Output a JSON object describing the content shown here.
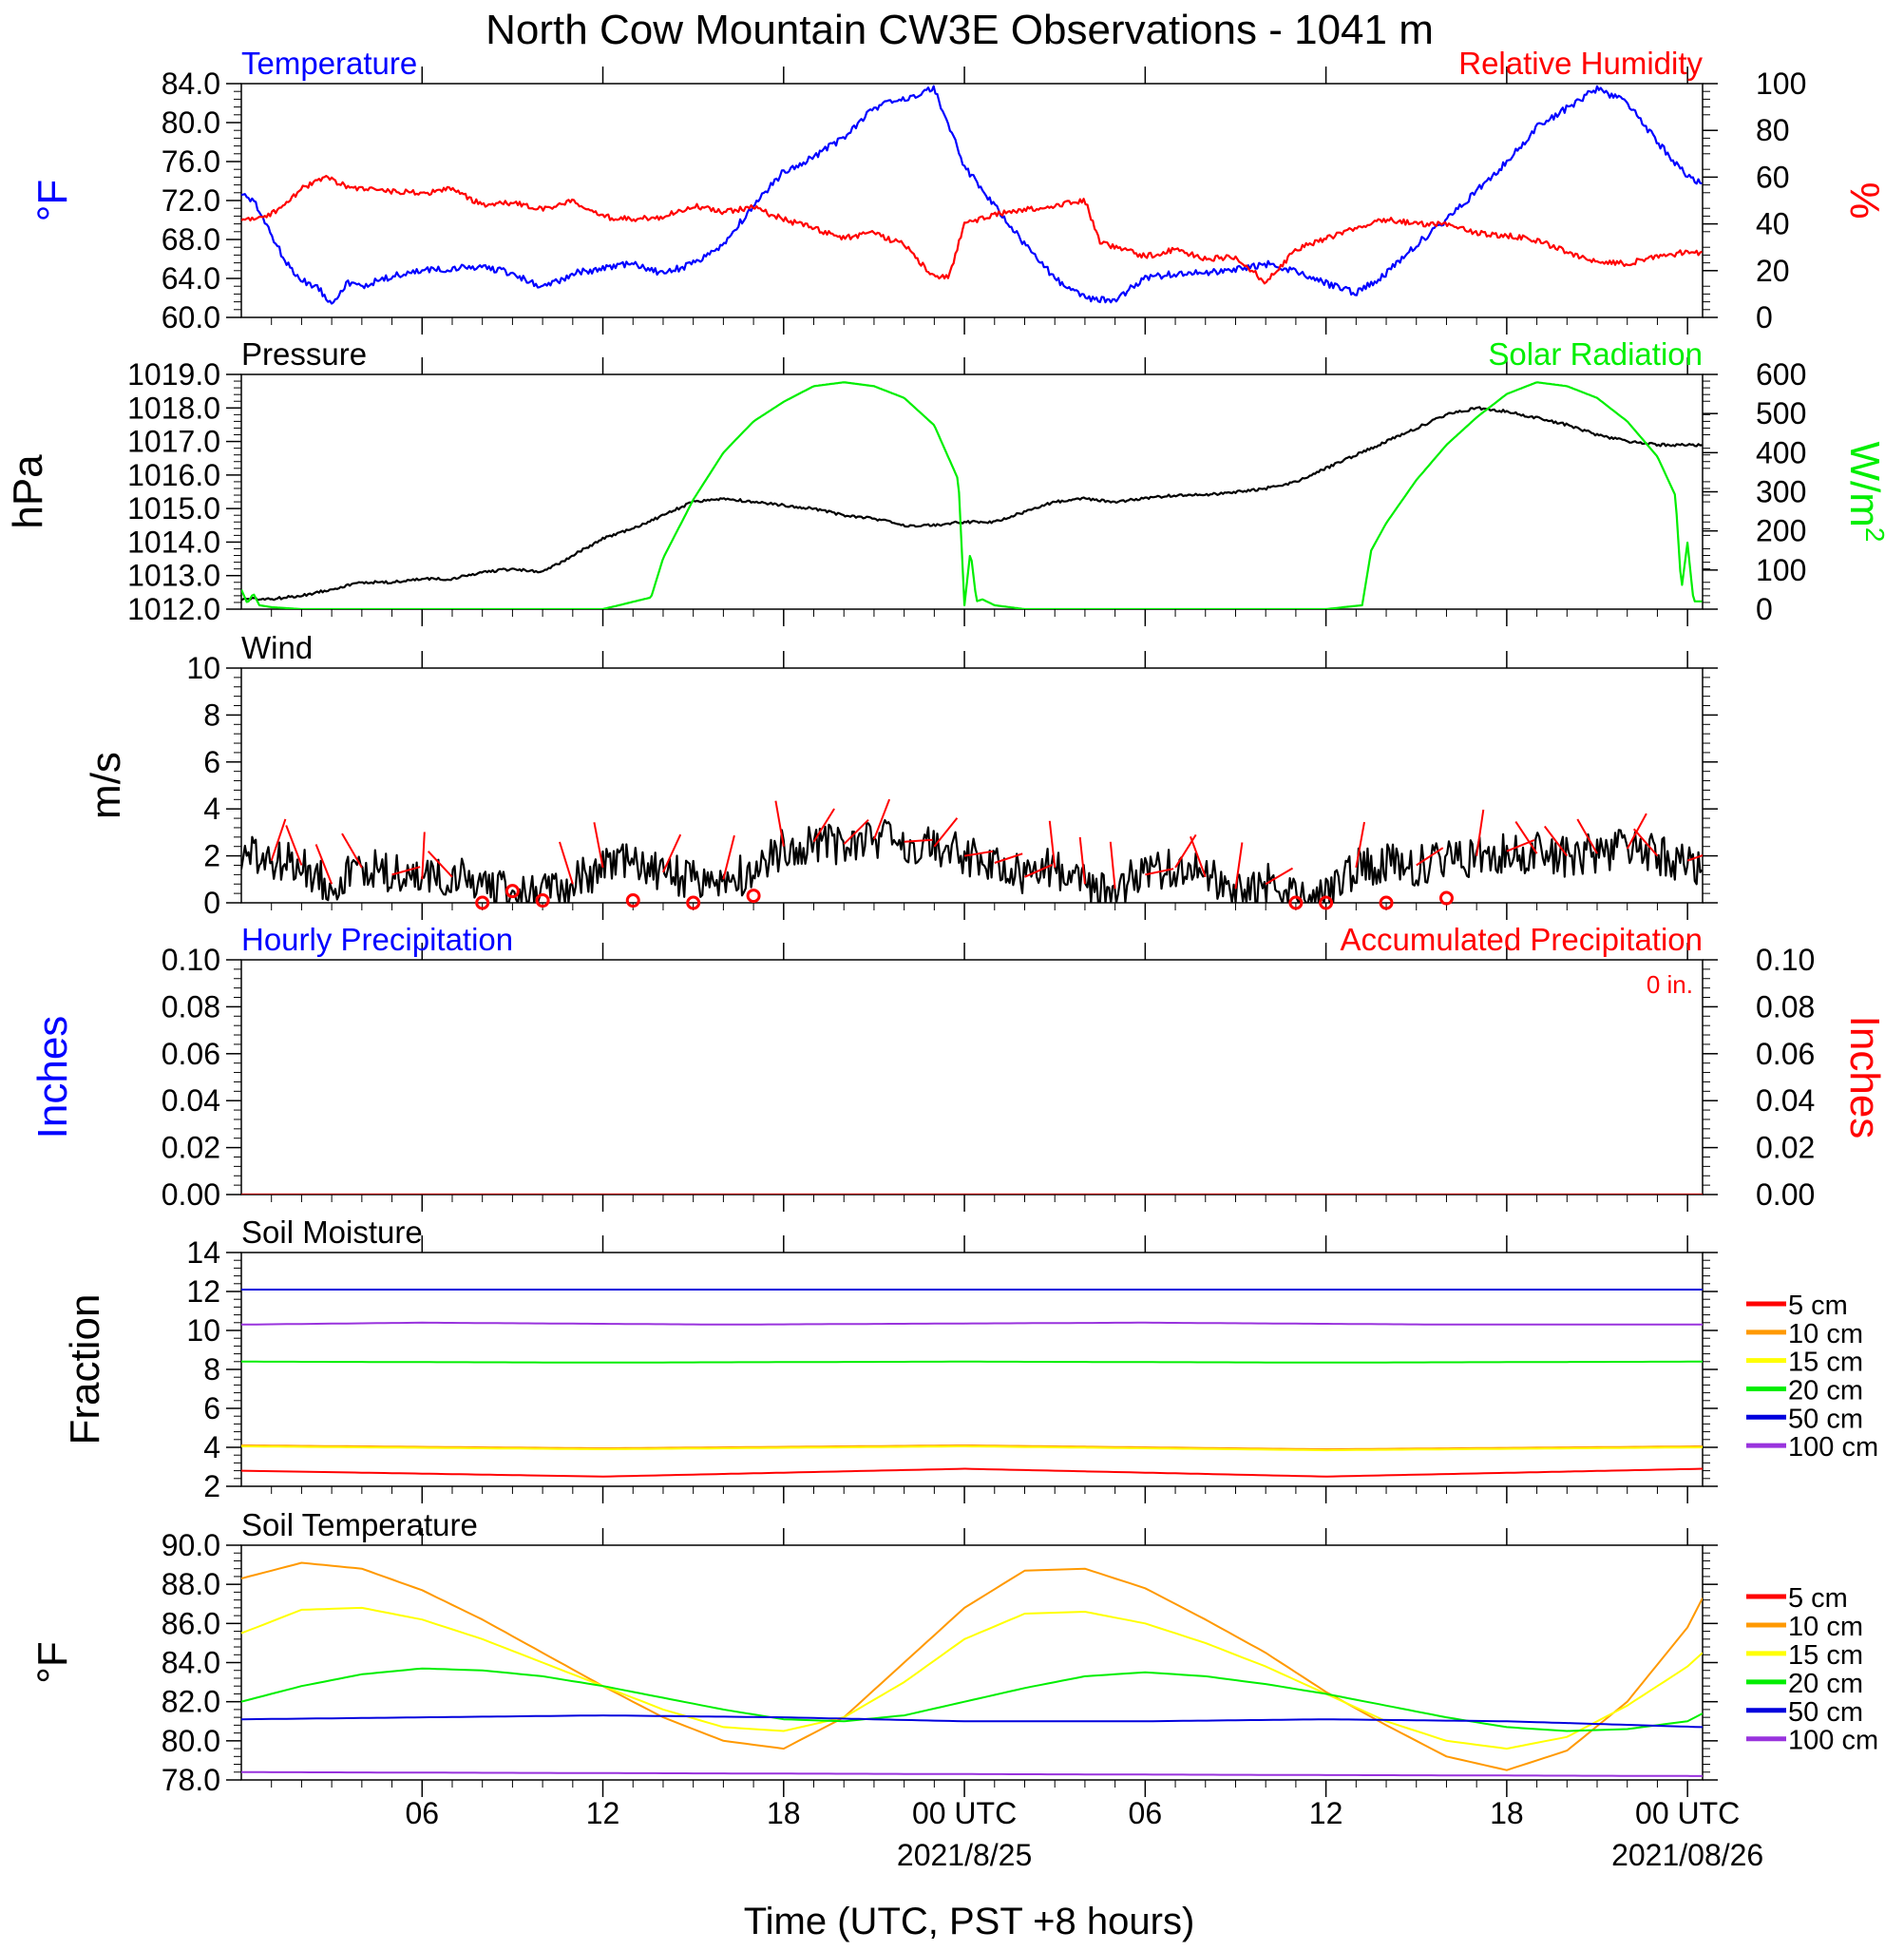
{
  "title": "North Cow Mountain CW3E Observations - 1041 m",
  "x_axis": {
    "title": "Time (UTC, PST +8 hours)",
    "tick_labels": [
      "06",
      "12",
      "18",
      "00 UTC",
      "06",
      "12",
      "18",
      "00 UTC"
    ],
    "date_labels": [
      "2021/8/25",
      "2021/08/26"
    ],
    "range_hours": [
      0,
      48.5
    ]
  },
  "colors": {
    "temperature": "#0000ff",
    "humidity": "#ff0000",
    "pressure": "#000000",
    "solar": "#00ee00",
    "wind": "#000000",
    "barbs": "#ff0000",
    "depth_5": "#ff0000",
    "depth_10": "#ff9900",
    "depth_15": "#ffff00",
    "depth_20": "#00ee00",
    "depth_50": "#0000dd",
    "depth_100": "#9933dd"
  },
  "chart_data": [
    {
      "type": "line",
      "title_left": "Temperature",
      "title_right": "Relative Humidity",
      "ylabel_left": "°F",
      "ylabel_right": "%",
      "ylim_left": [
        60,
        84
      ],
      "ylim_right": [
        0,
        100
      ],
      "yticks_left": [
        "60.0",
        "64.0",
        "68.0",
        "72.0",
        "76.0",
        "80.0",
        "84.0"
      ],
      "yticks_right": [
        "0",
        "20",
        "40",
        "60",
        "80",
        "100"
      ],
      "series": [
        {
          "name": "Temperature",
          "axis": "left",
          "color": "#0000ff",
          "x": [
            0,
            0.5,
            1,
            1.5,
            2,
            2.5,
            3,
            3.5,
            4,
            5,
            6,
            7,
            8,
            9,
            10,
            11,
            12,
            13,
            14,
            15,
            16,
            17,
            18,
            19,
            20,
            21,
            22,
            23,
            24,
            25,
            26,
            27,
            28,
            29,
            30,
            31,
            32,
            33,
            34,
            35,
            36,
            37,
            38,
            39,
            40,
            41,
            42,
            43,
            44,
            45,
            46,
            47,
            48,
            48.5
          ],
          "values": [
            72.8,
            71.5,
            68.5,
            65.5,
            63.8,
            63.2,
            61.5,
            63.5,
            63.2,
            64.2,
            64.8,
            65.0,
            65.2,
            64.5,
            63.0,
            64.5,
            65.0,
            65.5,
            64.5,
            65.5,
            67.5,
            71.5,
            75.0,
            76.5,
            78.5,
            81.5,
            82.5,
            83.5,
            75.5,
            71.5,
            67.5,
            64.0,
            62.0,
            61.8,
            64.0,
            64.5,
            64.5,
            65.0,
            65.5,
            64.8,
            63.5,
            62.5,
            64.5,
            67.5,
            70.0,
            73.0,
            76.0,
            79.5,
            81.5,
            83.5,
            82.0,
            78.0,
            74.5,
            73.8
          ]
        },
        {
          "name": "Relative Humidity",
          "axis": "right",
          "color": "#ff0000",
          "x": [
            0,
            1,
            2,
            2.8,
            3.5,
            4,
            5,
            6,
            7,
            8,
            9,
            10,
            11,
            12,
            13,
            14,
            15,
            16,
            17,
            18,
            19,
            20,
            21,
            22,
            23,
            23.5,
            24,
            25,
            26,
            27,
            28,
            28.5,
            29,
            30,
            31,
            32,
            33,
            34,
            35,
            36,
            37,
            38,
            39,
            40,
            41,
            42,
            43,
            44,
            45,
            46,
            47,
            48,
            48.5
          ],
          "values": [
            42,
            44,
            55,
            60,
            56,
            55,
            54,
            53,
            55,
            48,
            49,
            46,
            50,
            43,
            42,
            43,
            48,
            45,
            47,
            42,
            38,
            34,
            36,
            31,
            17,
            18,
            40,
            44,
            46,
            48,
            50,
            32,
            30,
            26,
            29,
            25,
            26,
            15,
            29,
            34,
            38,
            42,
            40,
            40,
            36,
            35,
            33,
            28,
            24,
            23,
            26,
            28,
            27
          ]
        }
      ]
    },
    {
      "type": "line",
      "title_left": "Pressure",
      "title_right": "Solar Radiation",
      "ylabel_left": "hPa",
      "ylabel_right": "W/m",
      "ylabel_right_sup": "2",
      "ylim_left": [
        1012,
        1019
      ],
      "ylim_right": [
        0,
        600
      ],
      "yticks_left": [
        "1012.0",
        "1013.0",
        "1014.0",
        "1015.0",
        "1016.0",
        "1017.0",
        "1018.0",
        "1019.0"
      ],
      "yticks_right": [
        "0",
        "100",
        "200",
        "300",
        "400",
        "500",
        "600"
      ],
      "series": [
        {
          "name": "Pressure",
          "axis": "left",
          "color": "#000000",
          "x": [
            0,
            1,
            2,
            3,
            4,
            5,
            6,
            7,
            8,
            9,
            10,
            11,
            12,
            13,
            14,
            15,
            16,
            17,
            18,
            19,
            20,
            21,
            22,
            23,
            24,
            25,
            26,
            27,
            28,
            29,
            30,
            31,
            32,
            33,
            34,
            35,
            36,
            37,
            38,
            39,
            40,
            41,
            42,
            43,
            44,
            45,
            46,
            47,
            48,
            48.5
          ],
          "values": [
            1012.3,
            1012.3,
            1012.4,
            1012.6,
            1012.8,
            1012.8,
            1012.9,
            1012.9,
            1013.1,
            1013.2,
            1013.1,
            1013.6,
            1014.1,
            1014.4,
            1014.8,
            1015.2,
            1015.3,
            1015.2,
            1015.1,
            1015.0,
            1014.8,
            1014.7,
            1014.5,
            1014.5,
            1014.6,
            1014.6,
            1014.9,
            1015.2,
            1015.3,
            1015.2,
            1015.3,
            1015.4,
            1015.4,
            1015.5,
            1015.6,
            1015.8,
            1016.2,
            1016.6,
            1017.0,
            1017.4,
            1017.8,
            1018.0,
            1017.9,
            1017.7,
            1017.5,
            1017.2,
            1017.0,
            1016.9,
            1016.9,
            1016.9
          ]
        },
        {
          "name": "Solar Radiation",
          "axis": "right",
          "color": "#00ee00",
          "x": [
            0,
            0.2,
            0.4,
            0.6,
            1,
            2,
            12,
            13.6,
            14,
            15,
            16,
            17,
            18,
            19,
            20,
            21,
            22,
            23,
            23.8,
            24,
            24.2,
            24.4,
            24.6,
            25,
            26,
            36,
            37.2,
            37.5,
            38,
            39,
            40,
            41,
            42,
            43,
            44,
            45,
            46,
            47,
            47.6,
            47.8,
            48,
            48.2,
            48.5
          ],
          "values": [
            50,
            15,
            40,
            10,
            5,
            0,
            0,
            30,
            130,
            280,
            400,
            480,
            530,
            570,
            580,
            570,
            540,
            470,
            330,
            10,
            150,
            20,
            25,
            10,
            0,
            0,
            10,
            150,
            220,
            330,
            420,
            490,
            550,
            580,
            570,
            540,
            480,
            390,
            290,
            50,
            170,
            20,
            20
          ]
        }
      ]
    },
    {
      "type": "line",
      "title_left": "Wind",
      "ylabel_left": "m/s",
      "ylim_left": [
        0,
        10
      ],
      "yticks_left": [
        "0",
        "2",
        "4",
        "6",
        "8",
        "10"
      ],
      "series": [
        {
          "name": "Wind Speed",
          "axis": "left",
          "color": "#000000",
          "x": [
            0,
            1,
            2,
            3,
            4,
            5,
            6,
            7,
            8,
            9,
            10,
            11,
            12,
            13,
            14,
            15,
            16,
            17,
            18,
            19,
            20,
            21,
            22,
            23,
            24,
            25,
            26,
            27,
            28,
            29,
            30,
            31,
            32,
            33,
            34,
            35,
            36,
            37,
            38,
            39,
            40,
            41,
            42,
            43,
            44,
            45,
            46,
            47,
            48,
            48.5
          ],
          "values": [
            2.0,
            1.8,
            1.6,
            0.8,
            1.5,
            1.2,
            1.0,
            1.1,
            0.8,
            0.3,
            0.4,
            0.8,
            1.5,
            1.7,
            1.3,
            0.9,
            1.0,
            1.3,
            2.4,
            2.6,
            2.5,
            2.7,
            2.6,
            2.4,
            2.0,
            1.7,
            1.1,
            1.5,
            0.8,
            0.6,
            1.2,
            1.5,
            1.1,
            0.6,
            0.8,
            0.5,
            0.2,
            1.5,
            1.7,
            1.6,
            1.8,
            2.0,
            2.2,
            2.1,
            2.0,
            2.1,
            2.3,
            2.0,
            1.8,
            1.6
          ]
        },
        {
          "name": "Wind Barbs",
          "axis": "left",
          "color": "#ff0000",
          "calm_hours": [
            8,
            9,
            10,
            13,
            15,
            17,
            35,
            36,
            38,
            40
          ],
          "calm_values": [
            0.0,
            0.5,
            0.1,
            0.1,
            0.0,
            0.3,
            0.0,
            0.0,
            0.0,
            0.2
          ]
        }
      ]
    },
    {
      "type": "line",
      "title_left": "Hourly Precipitation",
      "title_right": "Accumulated Precipitation",
      "annotation": "0 in.",
      "ylabel_left": "Inches",
      "ylabel_right": "Inches",
      "ylim_left": [
        0,
        0.1
      ],
      "ylim_right": [
        0,
        0.1
      ],
      "yticks_left": [
        "0.00",
        "0.02",
        "0.04",
        "0.06",
        "0.08",
        "0.10"
      ],
      "yticks_right": [
        "0.00",
        "0.02",
        "0.04",
        "0.06",
        "0.08",
        "0.10"
      ],
      "series": [
        {
          "name": "Accumulated Precipitation",
          "axis": "right",
          "color": "#aa0000",
          "x": [
            0,
            48.5
          ],
          "values": [
            0,
            0
          ]
        }
      ]
    },
    {
      "type": "line",
      "title_left": "Soil Moisture",
      "ylabel_left": "Fraction",
      "ylim_left": [
        2,
        14
      ],
      "yticks_left": [
        "2",
        "4",
        "6",
        "8",
        "10",
        "12",
        "14"
      ],
      "legend": [
        "5 cm",
        "10 cm",
        "15 cm",
        "20 cm",
        "50 cm",
        "100 cm"
      ],
      "series": [
        {
          "name": "5 cm",
          "color": "#ff0000",
          "x": [
            0,
            12,
            24,
            36,
            48.5
          ],
          "values": [
            2.8,
            2.5,
            2.9,
            2.5,
            2.9
          ]
        },
        {
          "name": "10 cm",
          "color": "#ff9900",
          "x": [
            0,
            12,
            24,
            36,
            48.5
          ],
          "values": [
            4.1,
            3.95,
            4.1,
            3.9,
            4.05
          ]
        },
        {
          "name": "15 cm",
          "color": "#ffff00",
          "x": [
            0,
            12,
            24,
            36,
            48.5
          ],
          "values": [
            4.05,
            3.9,
            4.05,
            3.85,
            4.0
          ]
        },
        {
          "name": "20 cm",
          "color": "#00ee00",
          "x": [
            0,
            12,
            24,
            36,
            48.5
          ],
          "values": [
            8.4,
            8.35,
            8.4,
            8.35,
            8.4
          ]
        },
        {
          "name": "50 cm",
          "color": "#0000dd",
          "x": [
            0,
            48.5
          ],
          "values": [
            12.1,
            12.1
          ]
        },
        {
          "name": "100 cm",
          "color": "#9933dd",
          "x": [
            0,
            6,
            16,
            30,
            40,
            48.5
          ],
          "values": [
            10.3,
            10.4,
            10.3,
            10.4,
            10.3,
            10.3
          ]
        }
      ]
    },
    {
      "type": "line",
      "title_left": "Soil Temperature",
      "ylabel_left": "°F",
      "ylim_left": [
        78,
        90
      ],
      "yticks_left": [
        "78.0",
        "80.0",
        "82.0",
        "84.0",
        "86.0",
        "88.0",
        "90.0"
      ],
      "legend": [
        "5 cm",
        "10 cm",
        "15 cm",
        "20 cm",
        "50 cm",
        "100 cm"
      ],
      "series": [
        {
          "name": "10 cm",
          "color": "#ff9900",
          "x": [
            0,
            2,
            4,
            6,
            8,
            10,
            12,
            14,
            16,
            18,
            20,
            22,
            24,
            26,
            28,
            30,
            32,
            34,
            36,
            38,
            40,
            42,
            44,
            46,
            48,
            48.5
          ],
          "values": [
            88.3,
            89.1,
            88.8,
            87.7,
            86.2,
            84.5,
            82.8,
            81.2,
            80.0,
            79.6,
            81.2,
            84.0,
            86.8,
            88.7,
            88.8,
            87.8,
            86.2,
            84.5,
            82.5,
            80.8,
            79.2,
            78.5,
            79.5,
            82.0,
            85.8,
            87.3
          ]
        },
        {
          "name": "15 cm",
          "color": "#ffff00",
          "x": [
            0,
            2,
            4,
            6,
            8,
            10,
            12,
            14,
            16,
            18,
            20,
            22,
            24,
            26,
            28,
            30,
            32,
            34,
            36,
            38,
            40,
            42,
            44,
            46,
            48,
            48.5
          ],
          "values": [
            85.5,
            86.7,
            86.8,
            86.2,
            85.2,
            84.0,
            82.8,
            81.6,
            80.7,
            80.5,
            81.2,
            83.0,
            85.2,
            86.5,
            86.6,
            86.0,
            85.0,
            83.8,
            82.4,
            81.0,
            80.0,
            79.6,
            80.2,
            81.8,
            83.8,
            84.5
          ]
        },
        {
          "name": "20 cm",
          "color": "#00ee00",
          "x": [
            0,
            2,
            4,
            6,
            8,
            10,
            12,
            14,
            16,
            18,
            20,
            22,
            24,
            26,
            28,
            30,
            32,
            34,
            36,
            38,
            40,
            42,
            44,
            46,
            48,
            48.5
          ],
          "values": [
            82.0,
            82.8,
            83.4,
            83.7,
            83.6,
            83.3,
            82.8,
            82.2,
            81.6,
            81.1,
            81.0,
            81.3,
            82.0,
            82.7,
            83.3,
            83.5,
            83.3,
            82.9,
            82.4,
            81.8,
            81.2,
            80.7,
            80.5,
            80.6,
            81.0,
            81.4
          ]
        },
        {
          "name": "50 cm",
          "color": "#0000dd",
          "x": [
            0,
            6,
            12,
            18,
            24,
            30,
            36,
            42,
            48.5
          ],
          "values": [
            81.1,
            81.2,
            81.3,
            81.2,
            81.0,
            81.0,
            81.1,
            81.0,
            80.7
          ]
        },
        {
          "name": "100 cm",
          "color": "#9933dd",
          "x": [
            0,
            12,
            24,
            36,
            48.5
          ],
          "values": [
            78.4,
            78.35,
            78.3,
            78.25,
            78.2
          ]
        }
      ]
    }
  ]
}
